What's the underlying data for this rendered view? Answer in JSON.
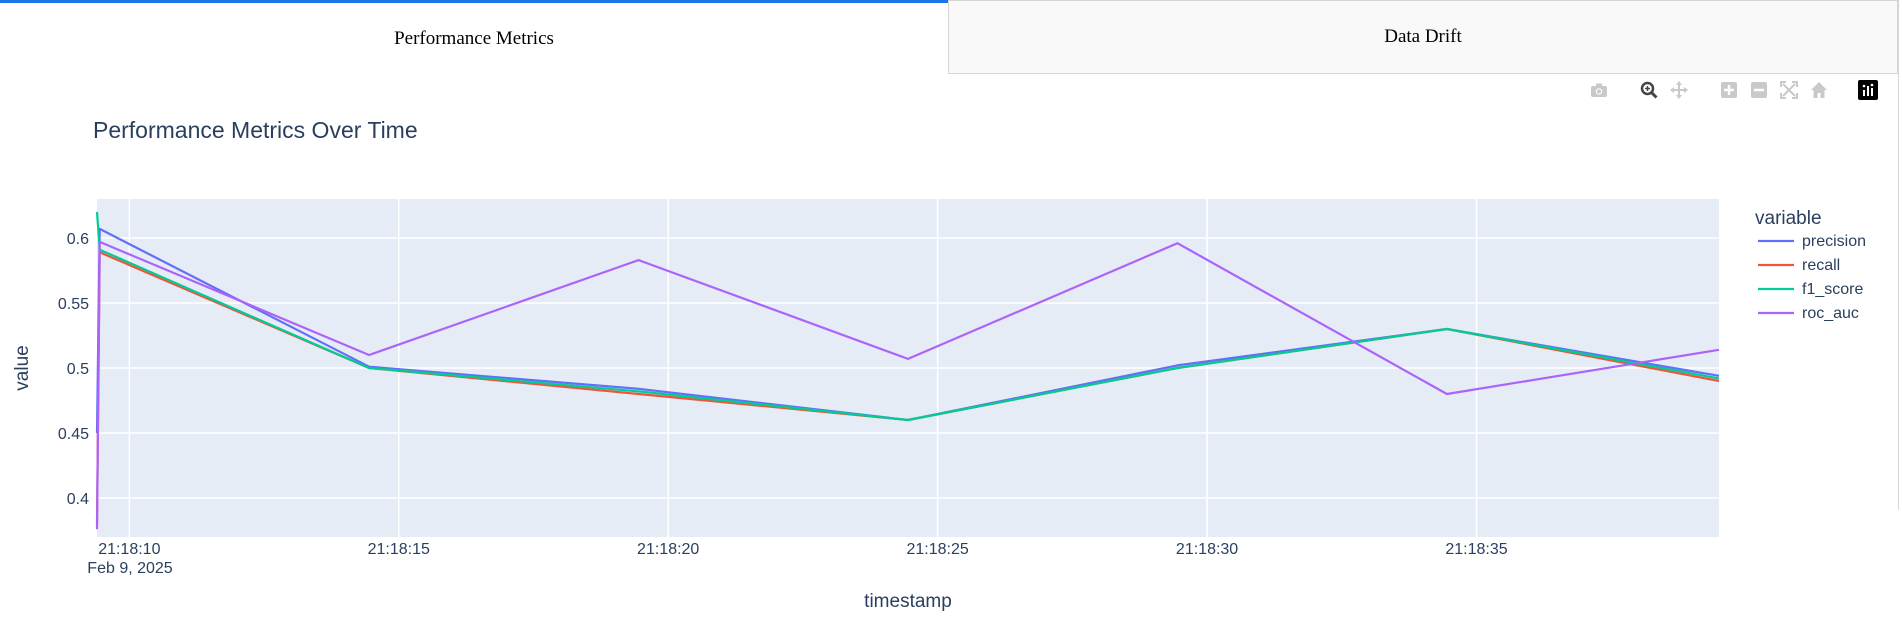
{
  "tabs": [
    {
      "label": "Performance Metrics",
      "active": true
    },
    {
      "label": "Data Drift",
      "active": false
    }
  ],
  "modebar": [
    "camera-icon",
    "zoom-icon",
    "pan-icon",
    "zoom-in-icon",
    "zoom-out-icon",
    "autoscale-icon",
    "reset-axes-icon",
    "plotly-logo-icon"
  ],
  "colors": {
    "plot_bg": "#e5ecf6",
    "tab_accent": "#1a73e8",
    "precision": "#636efa",
    "recall": "#ef553b",
    "f1_score": "#00cc96",
    "roc_auc": "#ab63fa"
  },
  "chart_data": {
    "type": "line",
    "title": "Performance Metrics Over Time",
    "xlabel": "timestamp",
    "ylabel": "value",
    "legend_title": "variable",
    "legend_position": "right",
    "grid": true,
    "x_tick_labels": [
      "21:18:10",
      "21:18:15",
      "21:18:20",
      "21:18:25",
      "21:18:30",
      "21:18:35"
    ],
    "x_tick_values": [
      10,
      15,
      20,
      25,
      30,
      35
    ],
    "x_date_label": "Feb 9, 2025",
    "xlim": [
      9.4,
      39.5
    ],
    "y_tick_labels": [
      "0.4",
      "0.45",
      "0.5",
      "0.55",
      "0.6"
    ],
    "y_tick_values": [
      0.4,
      0.45,
      0.5,
      0.55,
      0.6
    ],
    "ylim": [
      0.37,
      0.63
    ],
    "series": [
      {
        "name": "precision",
        "x": [
          9.4,
          9.45,
          14.45,
          19.45,
          24.45,
          29.45,
          34.45,
          39.5
        ],
        "values": [
          0.45,
          0.607,
          0.501,
          0.484,
          0.46,
          0.502,
          0.53,
          0.494
        ]
      },
      {
        "name": "recall",
        "x": [
          9.4,
          9.45,
          14.45,
          19.45,
          24.45,
          29.45,
          34.45,
          39.5
        ],
        "values": [
          0.38,
          0.589,
          0.5,
          0.48,
          0.46,
          0.5,
          0.53,
          0.49
        ]
      },
      {
        "name": "f1_score",
        "x": [
          9.4,
          9.45,
          14.45,
          19.45,
          24.45,
          29.45,
          34.45,
          39.5
        ],
        "values": [
          0.62,
          0.591,
          0.5,
          0.482,
          0.46,
          0.5,
          0.53,
          0.492
        ]
      },
      {
        "name": "roc_auc",
        "x": [
          9.4,
          9.45,
          14.45,
          19.45,
          24.45,
          29.45,
          34.45,
          39.5
        ],
        "values": [
          0.376,
          0.597,
          0.51,
          0.583,
          0.507,
          0.596,
          0.48,
          0.514
        ]
      }
    ]
  }
}
